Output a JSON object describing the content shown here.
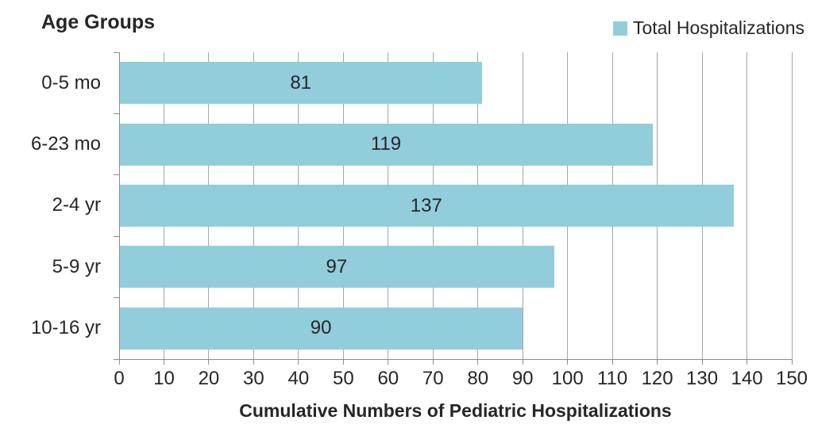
{
  "chart_data": {
    "type": "bar",
    "orientation": "horizontal",
    "title": "Age Groups",
    "xlabel": "Cumulative Numbers of Pediatric Hospitalizations",
    "legend": [
      "Total Hospitalizations"
    ],
    "legend_position": "top-right",
    "categories": [
      "0-5 mo",
      "6-23 mo",
      "2-4 yr",
      "5-9 yr",
      "10-16 yr"
    ],
    "series": [
      {
        "name": "Total Hospitalizations",
        "values": [
          81,
          119,
          137,
          97,
          90
        ]
      }
    ],
    "data_labels": [
      "81",
      "119",
      "137",
      "97",
      "90"
    ],
    "data_label_position": "center",
    "xlim": [
      0,
      150
    ],
    "xtick_step": 10,
    "xticks": [
      0,
      10,
      20,
      30,
      40,
      50,
      60,
      70,
      80,
      90,
      100,
      110,
      120,
      130,
      140,
      150
    ],
    "grid": "vertical",
    "colors": {
      "bar_fill": "#92CDDC",
      "gridline": "#A6A6A6",
      "axis_line": "#8C8C8C",
      "text": "#262626"
    }
  }
}
